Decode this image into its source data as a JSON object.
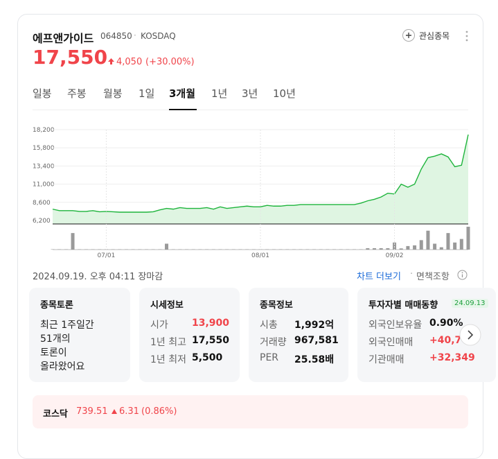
{
  "header": {
    "name": "에프앤가이드",
    "code": "064850",
    "market": "KOSDAQ",
    "price": "17,550",
    "change": "4,050",
    "change_rate": "(+30.00%)",
    "watch": "관심종목"
  },
  "tabs": [
    "일봉",
    "주봉",
    "월봉",
    "1일",
    "3개월",
    "1년",
    "3년",
    "10년"
  ],
  "chart_data": {
    "type": "line",
    "categories": [
      null,
      null,
      null,
      null,
      null,
      null,
      null,
      null,
      "07/01",
      null,
      null,
      null,
      null,
      null,
      null,
      null,
      null,
      null,
      null,
      null,
      null,
      null,
      null,
      null,
      null,
      null,
      null,
      null,
      null,
      null,
      null,
      "08/01",
      null,
      null,
      null,
      null,
      null,
      null,
      null,
      null,
      null,
      null,
      null,
      null,
      null,
      null,
      null,
      null,
      null,
      null,
      null,
      "09/02",
      null,
      null,
      null,
      null,
      null,
      null,
      null,
      null,
      null,
      null,
      null
    ],
    "series": [
      {
        "color": "#1db43b",
        "values": [
          7700,
          7500,
          7500,
          7500,
          7400,
          7400,
          7500,
          7350,
          7400,
          7350,
          7300,
          7300,
          7300,
          7300,
          7300,
          7350,
          7600,
          7800,
          7700,
          7900,
          7800,
          7800,
          7800,
          7900,
          7700,
          8000,
          7800,
          7900,
          8000,
          8100,
          8000,
          8000,
          8200,
          8100,
          8100,
          8200,
          8200,
          8300,
          8300,
          8300,
          8300,
          8300,
          8300,
          8300,
          8300,
          8300,
          8500,
          8800,
          9000,
          9300,
          9800,
          9700,
          11000,
          10600,
          11000,
          13000,
          14500,
          14700,
          15000,
          14600,
          13300,
          13500,
          17550
        ]
      },
      {
        "color": "#9a9a9a",
        "axis": "volume",
        "values": [
          15000,
          15000,
          15000,
          700000,
          15000,
          15000,
          15000,
          15000,
          15000,
          15000,
          15000,
          15000,
          15000,
          15000,
          15000,
          15000,
          15000,
          250000,
          15000,
          15000,
          15000,
          15000,
          15000,
          15000,
          15000,
          15000,
          15000,
          15000,
          15000,
          15000,
          15000,
          15000,
          15000,
          15000,
          15000,
          15000,
          15000,
          15000,
          15000,
          15000,
          15000,
          15000,
          15000,
          15000,
          15000,
          15000,
          15000,
          60000,
          60000,
          60000,
          60000,
          300000,
          50000,
          150000,
          180000,
          400000,
          800000,
          250000,
          100000,
          700000,
          300000,
          450000,
          967581
        ]
      }
    ],
    "ylim": [
      6200,
      18200
    ],
    "yticks": [
      {
        "value": 6200,
        "label": "6,200"
      },
      {
        "value": 8600,
        "label": "8,600"
      },
      {
        "value": 11000,
        "label": "11,000"
      },
      {
        "value": 13400,
        "label": "13,400"
      },
      {
        "value": 15800,
        "label": "15,800"
      },
      {
        "value": 18200,
        "label": "18,200"
      }
    ],
    "grid": true
  },
  "status": {
    "time": "2024.09.19. 오후 04:11 장마감",
    "more": "차트 더보기",
    "disclaimer": "면책조항"
  },
  "cards": [
    {
      "title": "종목토론",
      "lines": [
        "최근 1주일간",
        "51개의",
        "토론이",
        "올라왔어요"
      ]
    },
    {
      "title": "시세정보",
      "rows": [
        [
          "시가",
          "13,900"
        ],
        [
          "1년 최고",
          "17,550"
        ],
        [
          "1년 최저",
          "5,500"
        ]
      ]
    },
    {
      "title": "종목정보",
      "rows": [
        [
          "시총",
          "1,992억"
        ],
        [
          "거래량",
          "967,581"
        ],
        [
          "PER",
          "25.58배"
        ]
      ]
    },
    {
      "title": "투자자별 매매동향",
      "badge": "24.09.13",
      "rows": [
        [
          "외국인보유율",
          "0.90%"
        ],
        [
          "외국인매매",
          "+40,7"
        ],
        [
          "기관매매",
          "+32,349"
        ]
      ]
    }
  ],
  "index": {
    "name": "코스닥",
    "value": "739.51",
    "change": "6.31",
    "rate": "(0.86%)"
  }
}
